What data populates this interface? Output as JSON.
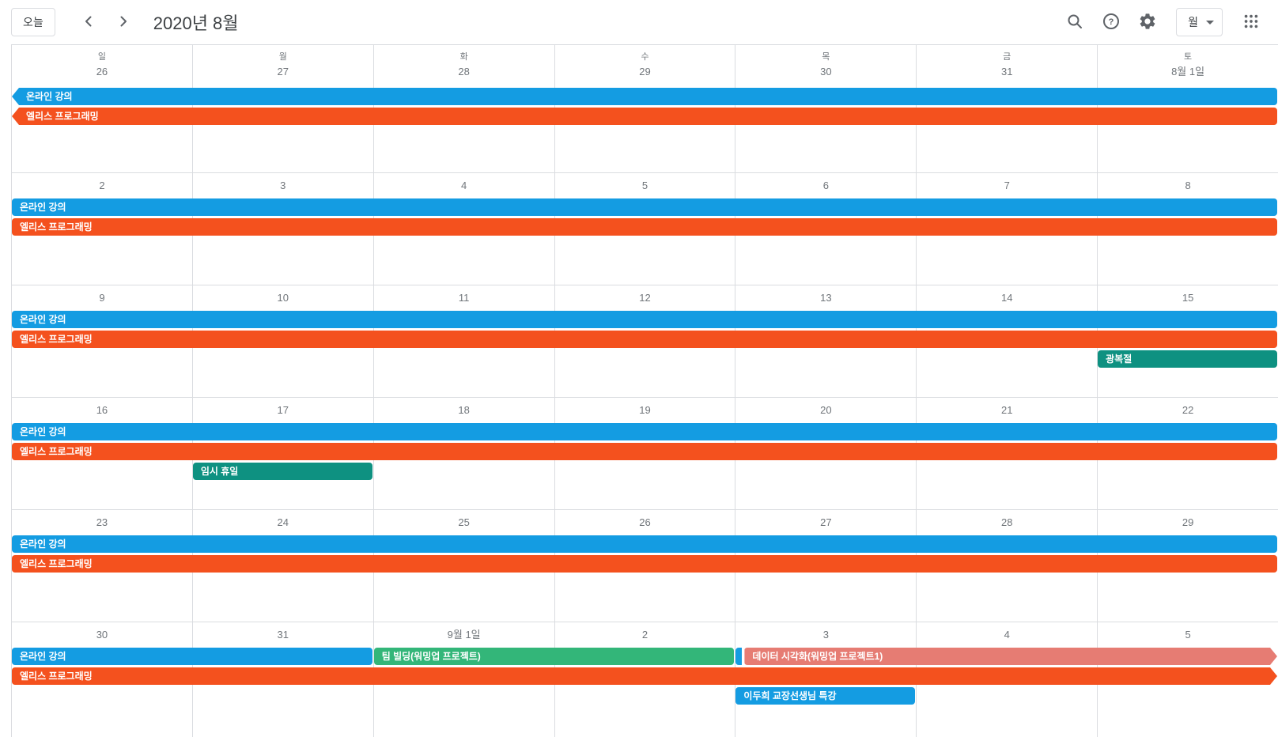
{
  "toolbar": {
    "today_label": "오늘",
    "title": "2020년 8월",
    "view_label": "월",
    "icons": [
      "chevron-left-icon",
      "chevron-right-icon",
      "search-icon",
      "help-icon",
      "settings-icon",
      "apps-grid-icon"
    ]
  },
  "colors": {
    "blue": "#149ce2",
    "orange": "#f4511e",
    "teal": "#0e9181",
    "green": "#33b679",
    "salmon": "#e67c73",
    "grid_line": "#dadce0",
    "muted_text": "#70757a"
  },
  "weekday_headers": [
    "일",
    "월",
    "화",
    "수",
    "목",
    "금",
    "토"
  ],
  "weeks": [
    {
      "dates": [
        "26",
        "27",
        "28",
        "29",
        "30",
        "31",
        "8월 1일"
      ],
      "events": [
        {
          "label": "온라인 강의",
          "color": "blue",
          "col": 0,
          "span": 7,
          "row": 0,
          "left_arrow": true,
          "right_arrow": false,
          "peek": false
        },
        {
          "label": "엘리스 프로그래밍",
          "color": "orange",
          "col": 0,
          "span": 7,
          "row": 1,
          "left_arrow": true,
          "right_arrow": false,
          "peek": false
        }
      ]
    },
    {
      "dates": [
        "2",
        "3",
        "4",
        "5",
        "6",
        "7",
        "8"
      ],
      "events": [
        {
          "label": "온라인 강의",
          "color": "blue",
          "col": 0,
          "span": 7,
          "row": 0,
          "left_arrow": false,
          "right_arrow": false,
          "peek": false
        },
        {
          "label": "엘리스 프로그래밍",
          "color": "orange",
          "col": 0,
          "span": 7,
          "row": 1,
          "left_arrow": false,
          "right_arrow": false,
          "peek": false
        }
      ]
    },
    {
      "dates": [
        "9",
        "10",
        "11",
        "12",
        "13",
        "14",
        "15"
      ],
      "events": [
        {
          "label": "온라인 강의",
          "color": "blue",
          "col": 0,
          "span": 7,
          "row": 0,
          "left_arrow": false,
          "right_arrow": false,
          "peek": false
        },
        {
          "label": "엘리스 프로그래밍",
          "color": "orange",
          "col": 0,
          "span": 7,
          "row": 1,
          "left_arrow": false,
          "right_arrow": false,
          "peek": false
        },
        {
          "label": "광복절",
          "color": "teal",
          "col": 6,
          "span": 1,
          "row": 2,
          "left_arrow": false,
          "right_arrow": false,
          "peek": false
        }
      ]
    },
    {
      "dates": [
        "16",
        "17",
        "18",
        "19",
        "20",
        "21",
        "22"
      ],
      "events": [
        {
          "label": "온라인 강의",
          "color": "blue",
          "col": 0,
          "span": 7,
          "row": 0,
          "left_arrow": false,
          "right_arrow": false,
          "peek": false
        },
        {
          "label": "엘리스 프로그래밍",
          "color": "orange",
          "col": 0,
          "span": 7,
          "row": 1,
          "left_arrow": false,
          "right_arrow": false,
          "peek": false
        },
        {
          "label": "임시 휴일",
          "color": "teal",
          "col": 1,
          "span": 1,
          "row": 2,
          "left_arrow": false,
          "right_arrow": false,
          "peek": false
        }
      ]
    },
    {
      "dates": [
        "23",
        "24",
        "25",
        "26",
        "27",
        "28",
        "29"
      ],
      "events": [
        {
          "label": "온라인 강의",
          "color": "blue",
          "col": 0,
          "span": 7,
          "row": 0,
          "left_arrow": false,
          "right_arrow": false,
          "peek": false
        },
        {
          "label": "엘리스 프로그래밍",
          "color": "orange",
          "col": 0,
          "span": 7,
          "row": 1,
          "left_arrow": false,
          "right_arrow": false,
          "peek": false
        }
      ]
    },
    {
      "dates": [
        "30",
        "31",
        "9월 1일",
        "2",
        "3",
        "4",
        "5"
      ],
      "events": [
        {
          "label": "온라인 강의",
          "color": "blue",
          "col": 0,
          "span": 2,
          "row": 0,
          "left_arrow": false,
          "right_arrow": false,
          "peek": false
        },
        {
          "label": "팀 빌딩(워밍업 프로젝트)",
          "color": "green",
          "col": 2,
          "span": 2,
          "row": 0,
          "left_arrow": false,
          "right_arrow": false,
          "peek": false
        },
        {
          "label": "데이터 시각화(워밍업 프로젝트1)",
          "color": "salmon",
          "col": 4,
          "span": 3,
          "row": 0,
          "left_arrow": false,
          "right_arrow": true,
          "peek": true,
          "peek_color": "blue"
        },
        {
          "label": "엘리스 프로그래밍",
          "color": "orange",
          "col": 0,
          "span": 7,
          "row": 1,
          "left_arrow": false,
          "right_arrow": true,
          "peek": false
        },
        {
          "label": "이두희 교장선생님 특강",
          "color": "blue",
          "col": 4,
          "span": 1,
          "row": 2,
          "left_arrow": false,
          "right_arrow": false,
          "peek": false
        }
      ]
    }
  ]
}
